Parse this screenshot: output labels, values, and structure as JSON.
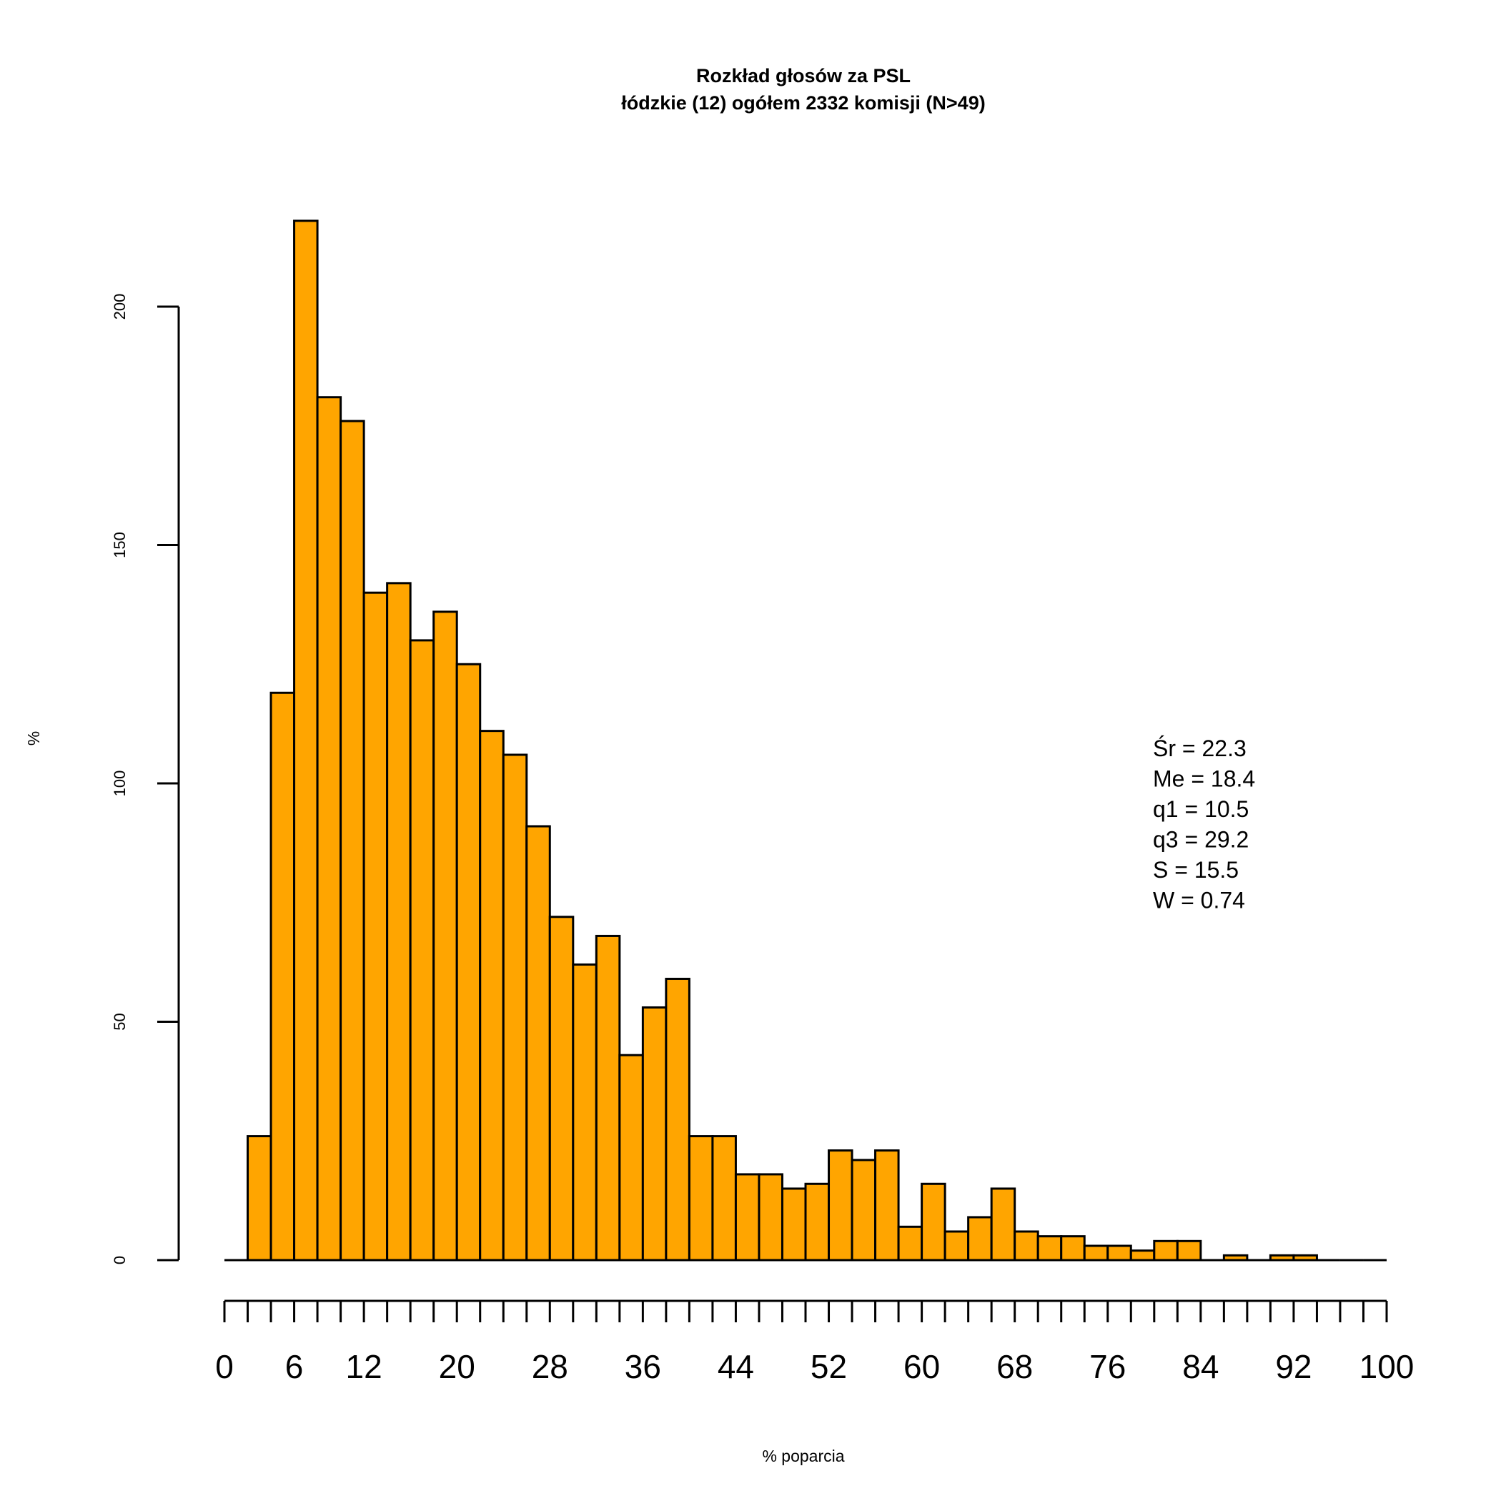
{
  "chart_data": {
    "type": "bar",
    "title": "Rozkład głosów za PSL",
    "subtitle": "łódzkie (12) ogółem 2332 komisji (N>49)",
    "xlabel": "% poparcia",
    "ylabel": "%",
    "bin_width": 2,
    "xlim": [
      0,
      100
    ],
    "ylim": [
      0,
      200
    ],
    "yticks": [
      0,
      50,
      100,
      150,
      200
    ],
    "xticks": [
      0,
      6,
      12,
      20,
      28,
      36,
      44,
      52,
      60,
      68,
      76,
      84,
      92,
      100
    ],
    "bins_start": [
      0,
      2,
      4,
      6,
      8,
      10,
      12,
      14,
      16,
      18,
      20,
      22,
      24,
      26,
      28,
      30,
      32,
      34,
      36,
      38,
      40,
      42,
      44,
      46,
      48,
      50,
      52,
      54,
      56,
      58,
      60,
      62,
      64,
      66,
      68,
      70,
      72,
      74,
      76,
      78,
      80,
      82,
      84,
      86,
      88,
      90,
      92,
      94,
      96,
      98
    ],
    "values": [
      0,
      26,
      119,
      218,
      181,
      176,
      140,
      142,
      130,
      136,
      125,
      111,
      106,
      91,
      72,
      62,
      68,
      43,
      53,
      59,
      26,
      26,
      18,
      18,
      15,
      16,
      23,
      21,
      23,
      7,
      16,
      6,
      9,
      15,
      6,
      5,
      5,
      3,
      3,
      2,
      4,
      4,
      0,
      1,
      0,
      1,
      1,
      0,
      0,
      0
    ],
    "bar_color": "#FFA500",
    "grid": false,
    "stats": [
      "Śr = 22.3",
      "Me = 18.4",
      "q1 = 10.5",
      "q3 = 29.2",
      "S = 15.5",
      "W = 0.74"
    ]
  }
}
